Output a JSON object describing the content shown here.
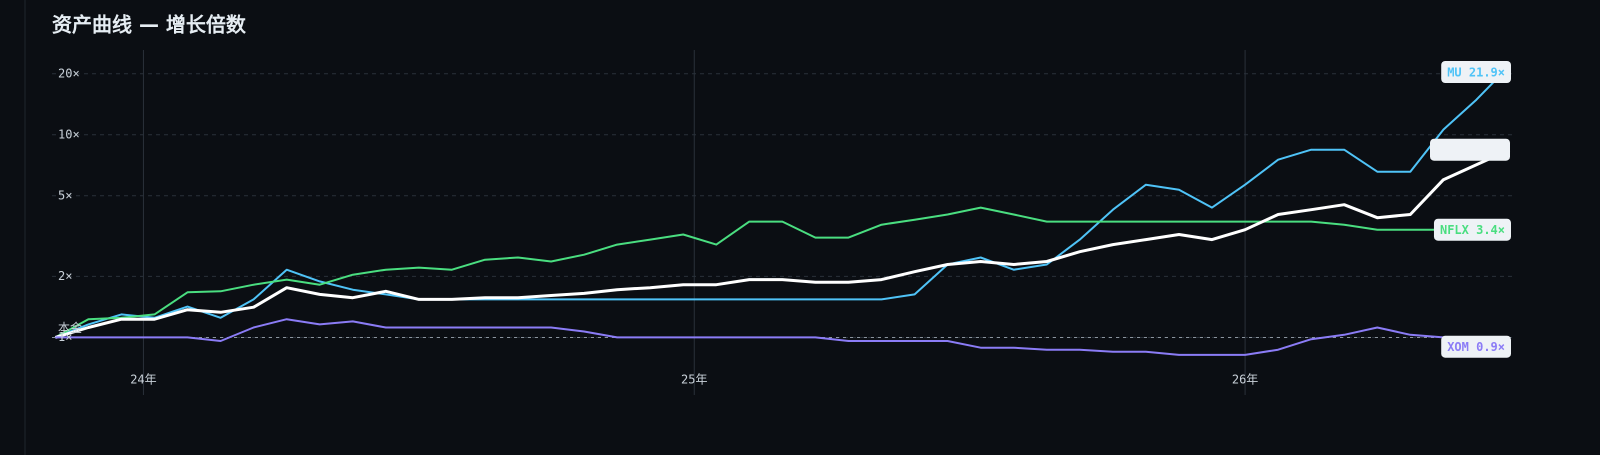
{
  "chart_data": {
    "type": "line",
    "title": "资产曲线 — 增长倍数",
    "log_y": true,
    "grid": true,
    "x": [
      23.84,
      23.9,
      23.96,
      24.02,
      24.08,
      24.14,
      24.2,
      24.26,
      24.32,
      24.38,
      24.44,
      24.5,
      24.56,
      24.62,
      24.68,
      24.74,
      24.8,
      24.86,
      24.92,
      24.98,
      25.04,
      25.1,
      25.16,
      25.22,
      25.28,
      25.34,
      25.4,
      25.46,
      25.52,
      25.58,
      25.64,
      25.7,
      25.76,
      25.82,
      25.88,
      25.94,
      26,
      26.06,
      26.12,
      26.18,
      26.24,
      26.3,
      26.36,
      26.42,
      26.48
    ],
    "xlim": [
      23.834,
      26.49
    ],
    "xticks": [
      {
        "value": 24,
        "label": "24年"
      },
      {
        "value": 25,
        "label": "25年"
      },
      {
        "value": 26,
        "label": "26年"
      }
    ],
    "ylim": [
      0.52,
      26.2
    ],
    "yticks": [
      {
        "value": 1,
        "label": "1×"
      },
      {
        "value": 2,
        "label": "2×"
      },
      {
        "value": 5,
        "label": "5×"
      },
      {
        "value": 10,
        "label": "10×"
      },
      {
        "value": 20,
        "label": "20×"
      }
    ],
    "reference_line": {
      "value": 1,
      "label": "本金"
    },
    "series": [
      {
        "name": "MU",
        "color": "#4fc3f7",
        "end_label": "MU 21.9×",
        "values": [
          1.0,
          1.16,
          1.3,
          1.25,
          1.42,
          1.25,
          1.54,
          2.16,
          1.89,
          1.72,
          1.63,
          1.54,
          1.54,
          1.54,
          1.54,
          1.54,
          1.54,
          1.54,
          1.54,
          1.54,
          1.54,
          1.54,
          1.54,
          1.54,
          1.54,
          1.54,
          1.63,
          2.29,
          2.48,
          2.16,
          2.29,
          3.04,
          4.27,
          5.67,
          5.36,
          4.37,
          5.67,
          7.53,
          8.44,
          8.44,
          6.57,
          6.57,
          10.6,
          14.9,
          21.9
        ]
      },
      {
        "name": "NFLX",
        "color": "#4ade80",
        "end_label": "NFLX 3.4×",
        "values": [
          1.0,
          1.23,
          1.25,
          1.3,
          1.67,
          1.69,
          1.82,
          1.93,
          1.82,
          2.04,
          2.16,
          2.21,
          2.16,
          2.42,
          2.48,
          2.37,
          2.56,
          2.87,
          3.04,
          3.22,
          2.87,
          3.73,
          3.73,
          3.11,
          3.11,
          3.6,
          3.81,
          4.04,
          4.37,
          4.04,
          3.73,
          3.73,
          3.73,
          3.73,
          3.73,
          3.73,
          3.73,
          3.73,
          3.73,
          3.6,
          3.4,
          3.4,
          3.4,
          3.4,
          3.4
        ]
      },
      {
        "color": "#ffffff",
        "values": [
          1.0,
          1.12,
          1.23,
          1.23,
          1.37,
          1.33,
          1.41,
          1.76,
          1.63,
          1.57,
          1.69,
          1.54,
          1.54,
          1.57,
          1.57,
          1.61,
          1.65,
          1.72,
          1.76,
          1.82,
          1.82,
          1.93,
          1.93,
          1.87,
          1.87,
          1.93,
          2.11,
          2.29,
          2.37,
          2.29,
          2.37,
          2.65,
          2.87,
          3.04,
          3.22,
          3.04,
          3.4,
          4.04,
          4.27,
          4.52,
          3.9,
          4.04,
          6.0,
          7.11,
          8.44
        ]
      },
      {
        "name": "XOM",
        "color": "#8b7cf6",
        "end_label": "XOM 0.9×",
        "values": [
          1.0,
          1.0,
          1.0,
          1.0,
          1.0,
          0.96,
          1.12,
          1.23,
          1.16,
          1.2,
          1.12,
          1.12,
          1.12,
          1.12,
          1.12,
          1.12,
          1.07,
          1.0,
          1.0,
          1.0,
          1.0,
          1.0,
          1.0,
          1.0,
          0.96,
          0.96,
          0.96,
          0.96,
          0.89,
          0.89,
          0.87,
          0.87,
          0.85,
          0.85,
          0.82,
          0.82,
          0.82,
          0.87,
          0.98,
          1.03,
          1.12,
          1.03,
          1.0,
          0.98,
          0.9
        ]
      }
    ]
  }
}
